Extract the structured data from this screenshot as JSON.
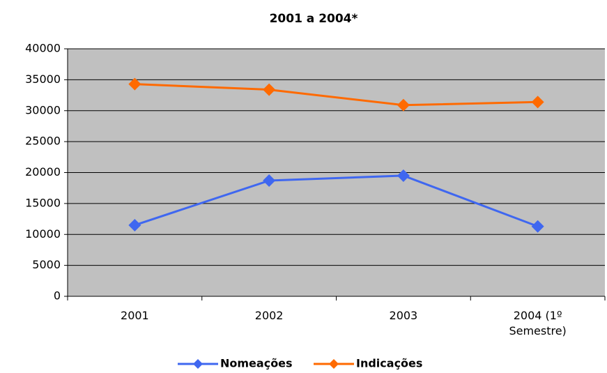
{
  "chart_data": {
    "type": "line",
    "title": "2001 a 2004*",
    "categories": [
      "2001",
      "2002",
      "2003",
      "2004 (1º Semestre)"
    ],
    "series": [
      {
        "name": "Nomeações",
        "color": "#3f67f0",
        "values": [
          11500,
          18700,
          19500,
          11300
        ]
      },
      {
        "name": "Indicações",
        "color": "#ff6a00",
        "values": [
          34300,
          33400,
          30900,
          31400
        ]
      }
    ],
    "ylim": [
      0,
      40000
    ],
    "yticks": [
      0,
      5000,
      10000,
      15000,
      20000,
      25000,
      30000,
      35000,
      40000
    ],
    "grid": true,
    "legend": "bottom"
  }
}
